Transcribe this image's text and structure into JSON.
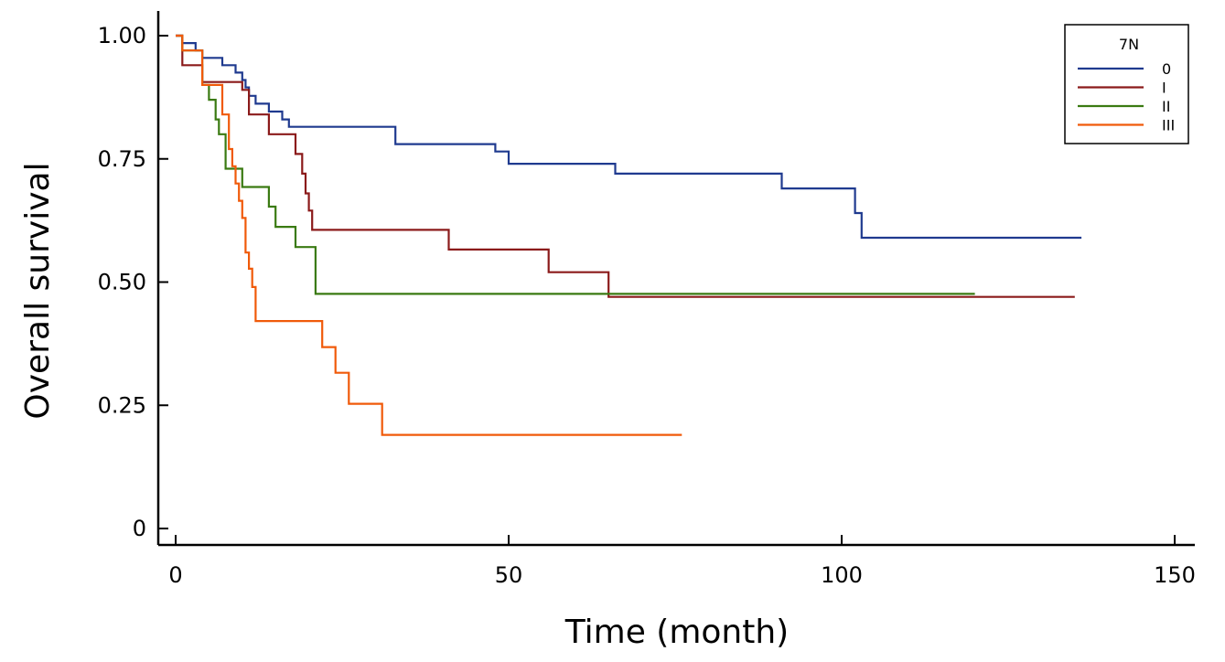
{
  "chart_data": {
    "type": "line",
    "step": true,
    "xlabel": "Time (month)",
    "ylabel": "Overall survival",
    "xlim": [
      0,
      150
    ],
    "ylim": [
      0,
      1
    ],
    "xticks": [
      0,
      50,
      100,
      150
    ],
    "xtick_labels": [
      "0",
      "50",
      "100",
      "150"
    ],
    "yticks": [
      0,
      0.25,
      0.5,
      0.75,
      1.0
    ],
    "ytick_labels": [
      "0",
      "0.25",
      "0.50",
      "0.75",
      "1.00"
    ],
    "grid": false,
    "legend": {
      "title": "7N",
      "position": "top-right"
    },
    "series": [
      {
        "name": "0",
        "color": "#1f3a8f",
        "points": [
          [
            0,
            1.0
          ],
          [
            1,
            0.985
          ],
          [
            3,
            0.97
          ],
          [
            4,
            0.955
          ],
          [
            7,
            0.94
          ],
          [
            9,
            0.925
          ],
          [
            10,
            0.91
          ],
          [
            10.5,
            0.895
          ],
          [
            11,
            0.878
          ],
          [
            12,
            0.862
          ],
          [
            14,
            0.846
          ],
          [
            16,
            0.83
          ],
          [
            17,
            0.815
          ],
          [
            33,
            0.78
          ],
          [
            48,
            0.765
          ],
          [
            50,
            0.74
          ],
          [
            66,
            0.72
          ],
          [
            91,
            0.69
          ],
          [
            102,
            0.64
          ],
          [
            103,
            0.59
          ],
          [
            136,
            0.59
          ]
        ]
      },
      {
        "name": "I",
        "color": "#8b1a1a",
        "points": [
          [
            0,
            1.0
          ],
          [
            1,
            0.94
          ],
          [
            4,
            0.906
          ],
          [
            10,
            0.89
          ],
          [
            11,
            0.84
          ],
          [
            14,
            0.8
          ],
          [
            18,
            0.76
          ],
          [
            19,
            0.72
          ],
          [
            19.5,
            0.68
          ],
          [
            20,
            0.645
          ],
          [
            20.5,
            0.606
          ],
          [
            41,
            0.566
          ],
          [
            56,
            0.52
          ],
          [
            65,
            0.47
          ],
          [
            135,
            0.47
          ]
        ]
      },
      {
        "name": "II",
        "color": "#3a7a12",
        "points": [
          [
            0,
            1.0
          ],
          [
            1,
            0.97
          ],
          [
            4,
            0.9
          ],
          [
            5,
            0.87
          ],
          [
            6,
            0.83
          ],
          [
            6.5,
            0.8
          ],
          [
            7.5,
            0.73
          ],
          [
            10,
            0.693
          ],
          [
            14,
            0.653
          ],
          [
            15,
            0.612
          ],
          [
            18,
            0.571
          ],
          [
            21,
            0.476
          ],
          [
            120,
            0.476
          ]
        ]
      },
      {
        "name": "III",
        "color": "#f05a0a",
        "points": [
          [
            0,
            1.0
          ],
          [
            1,
            0.97
          ],
          [
            4,
            0.9
          ],
          [
            7,
            0.84
          ],
          [
            8,
            0.77
          ],
          [
            8.5,
            0.735
          ],
          [
            9,
            0.7
          ],
          [
            9.5,
            0.665
          ],
          [
            10,
            0.63
          ],
          [
            10.5,
            0.56
          ],
          [
            11,
            0.527
          ],
          [
            11.5,
            0.49
          ],
          [
            12,
            0.421
          ],
          [
            22,
            0.368
          ],
          [
            24,
            0.316
          ],
          [
            26,
            0.253
          ],
          [
            31,
            0.19
          ],
          [
            76,
            0.19
          ]
        ]
      }
    ]
  }
}
